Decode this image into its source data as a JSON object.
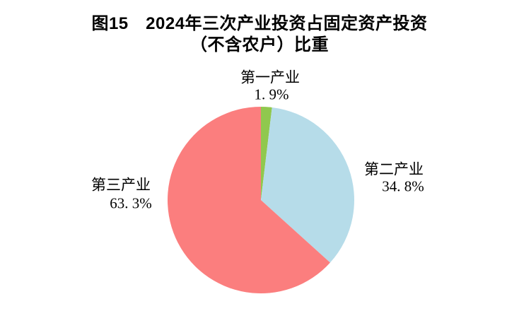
{
  "title": {
    "line1": "图15　2024年三次产业投资占固定资产投资",
    "line2": "（不含农户）比重"
  },
  "chart_data": {
    "type": "pie",
    "title": "图15 2024年三次产业投资占固定资产投资（不含农户）比重",
    "start_angle_deg": 0,
    "direction": "clockwise",
    "legend": "none",
    "labels_position": "outside",
    "background": "#FFFFFF",
    "categories": [
      "第一产业",
      "第二产业",
      "第三产业"
    ],
    "values": [
      1.9,
      34.8,
      63.3
    ],
    "slices": [
      {
        "name": "第一产业",
        "value": 1.9,
        "display_value": "1. 9%",
        "color": "#90C84E"
      },
      {
        "name": "第二产业",
        "value": 34.8,
        "display_value": "34. 8%",
        "color": "#B6DCE9"
      },
      {
        "name": "第三产业",
        "value": 63.3,
        "display_value": "63. 3%",
        "color": "#FB7E7E"
      }
    ]
  }
}
